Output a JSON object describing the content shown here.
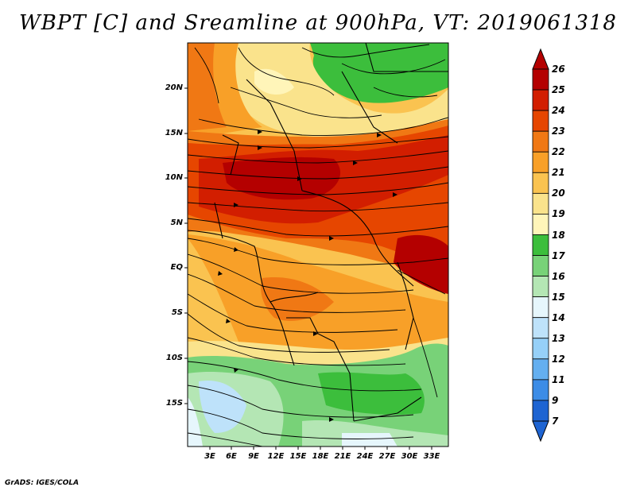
{
  "title": "WBPT [C] and Sreamline at 900hPa, VT: 2019061318",
  "credit": "GrADS: IGES/COLA",
  "map": {
    "lat_labels": [
      "20N",
      "15N",
      "10N",
      "5N",
      "EQ",
      "5S",
      "10S",
      "15S"
    ],
    "lon_labels": [
      "3E",
      "6E",
      "9E",
      "12E",
      "15E",
      "18E",
      "21E",
      "24E",
      "27E",
      "30E",
      "33E"
    ]
  },
  "colorbar": {
    "labels": [
      "26",
      "25",
      "24",
      "23",
      "22",
      "21",
      "20",
      "19",
      "18",
      "17",
      "16",
      "15",
      "14",
      "13",
      "12",
      "11",
      "9",
      "7"
    ],
    "colors": [
      "#b40000",
      "#d21e00",
      "#e64600",
      "#f07814",
      "#f8a028",
      "#fac350",
      "#fae38c",
      "#fff5b9",
      "#3cbe3c",
      "#78d278",
      "#b4e6b4",
      "#e6f6fc",
      "#bee2fa",
      "#96d0f8",
      "#64aff0",
      "#3c8ce6",
      "#1e64d2"
    ]
  }
}
